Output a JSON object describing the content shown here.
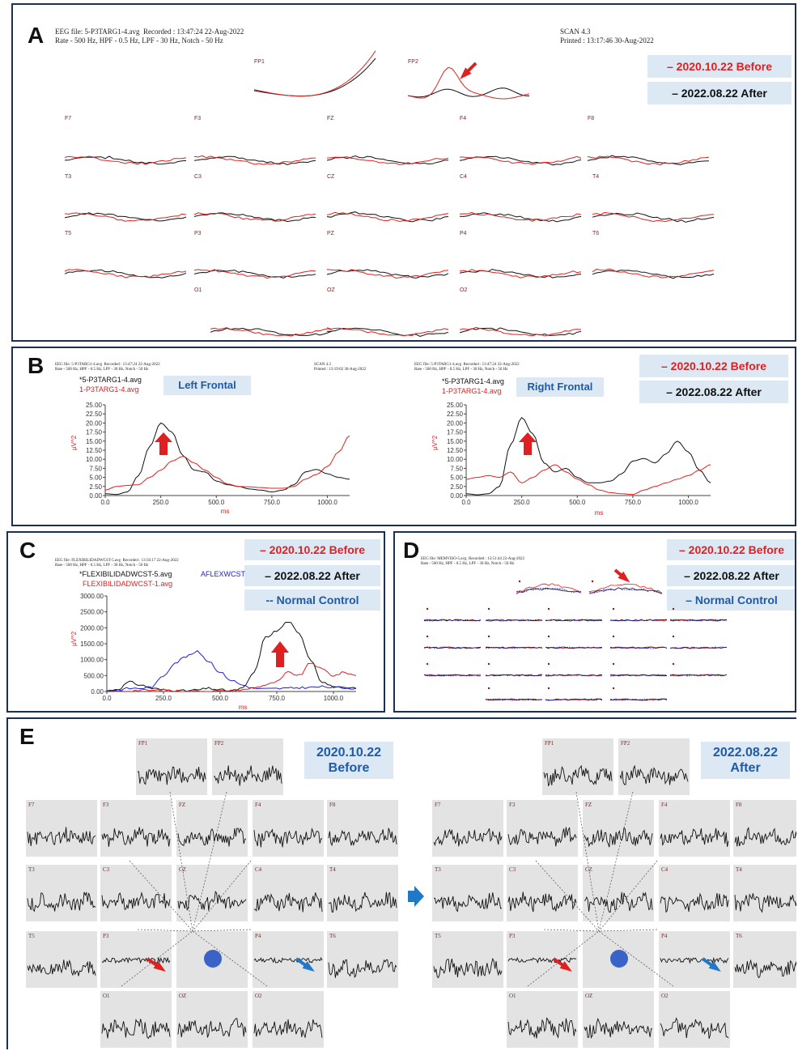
{
  "panelA": {
    "letter": "A",
    "header_line1": "EEG file: 5-P3TARG1-4.avg  Recorded : 13:47:24 22-Aug-2022",
    "header_line2": "Rate - 500 Hz, HPF - 0.5 Hz, LPF - 30 Hz, Notch - 50 Hz",
    "scan": "SCAN 4.3",
    "printed": "Printed : 13:17:46 30-Aug-2022",
    "legend_before": "–  2020.10.22  Before",
    "legend_after": "–  2022.08.22  After",
    "channels": [
      "FP1",
      "FP2",
      "F7",
      "F3",
      "FZ",
      "F4",
      "F8",
      "T3",
      "C3",
      "CZ",
      "C4",
      "T4",
      "T5",
      "P3",
      "PZ",
      "P4",
      "T6",
      "O1",
      "OZ",
      "O2"
    ]
  },
  "panelB": {
    "letter": "B",
    "header_line1": "EEG file: 5-P3TARG1-4.avg  Recorded : 13:47:24 22-Aug-2022",
    "header_line2": "Rate - 500 Hz, HPF - 0.5 Hz, LPF - 30 Hz, Notch - 50 Hz",
    "scan": "SCAN 4.3",
    "printed_left": "Printed : 13:19:02 30-Aug-2022",
    "printed_right": "Printed : 13:19:49 30-Aug-2022",
    "series1": "*5-P3TARG1-4.avg",
    "series2": "1-P3TARG1-4.avg",
    "tag_left": "Left Frontal",
    "tag_right": "Right Frontal",
    "legend_before": "–  2020.10.22  Before",
    "legend_after": "–  2022.08.22  After",
    "ylabel": "µV^2",
    "xlabel": "ms"
  },
  "panelC": {
    "letter": "C",
    "header_line1": "EEG file: FLEXIBILIDADWCST-5.avg  Recorded : 13:56:17 22-Aug-2022",
    "header_line2": "Rate - 500 Hz, HPF - 0.5 Hz, LPF - 30 Hz, Notch - 50 Hz",
    "series1": "*FLEXIBILIDADWCST-5.avg",
    "series2": "FLEXIBILIDADWCST-1.avg",
    "series3": "AFLEXWCST",
    "legend_before": "–  2020.10.22  Before",
    "legend_after": "–  2022.08.22  After",
    "legend_normal": "--  Normal Control",
    "ylabel": "µV^2",
    "xlabel": "ms"
  },
  "panelD": {
    "letter": "D",
    "header_line1": "EEG file: MEMVISO-5.avg  Recorded : 13:51:44 22-Aug-2022",
    "header_line2": "Rate - 500 Hz, HPF - 0.5 Hz, LPF - 30 Hz, Notch - 50 Hz",
    "legend_before": "–  2020.10.22  Before",
    "legend_after": "–  2022.08.22  After",
    "legend_normal": "–  Normal Control"
  },
  "panelE": {
    "letter": "E",
    "left_tag_line1": "2020.10.22",
    "left_tag_line2": "Before",
    "right_tag_line1": "2022.08.22",
    "right_tag_line2": "After",
    "channels": [
      "FP1",
      "FP2",
      "F7",
      "F3",
      "FZ",
      "F4",
      "F8",
      "T3",
      "C3",
      "CZ",
      "C4",
      "T4",
      "T5",
      "P3",
      "PZ",
      "P4",
      "T6",
      "O1",
      "OZ",
      "O2"
    ]
  },
  "colors": {
    "before": "#e02020",
    "after": "#111111",
    "normal": "#2020d0",
    "frame": "#1f2f4f",
    "tag_bg": "#dce9f5",
    "arrow_blue": "#1f78c8"
  },
  "chart_data": [
    {
      "type": "line",
      "panel": "B-left",
      "x": [
        0,
        50,
        100,
        150,
        200,
        250,
        300,
        350,
        400,
        450,
        500,
        550,
        600,
        650,
        700,
        750,
        800,
        850,
        900,
        950,
        1000,
        1050,
        1100
      ],
      "series": [
        {
          "name": "*5-P3TARG1-4.avg",
          "values": [
            0.5,
            0.3,
            1.0,
            5.5,
            13.5,
            20.0,
            17.5,
            11.0,
            7.0,
            6.5,
            4.0,
            3.0,
            2.5,
            1.8,
            1.5,
            1.0,
            1.5,
            3.0,
            6.5,
            7.2,
            6.0,
            5.0,
            4.5
          ]
        },
        {
          "name": "1-P3TARG1-4.avg",
          "values": [
            1.5,
            2.5,
            2.8,
            3.0,
            5.0,
            7.0,
            9.5,
            10.8,
            9.0,
            7.0,
            5.0,
            3.2,
            2.5,
            2.4,
            2.2,
            2.0,
            2.0,
            2.5,
            4.5,
            5.8,
            8.0,
            12.0,
            16.5
          ]
        }
      ],
      "xlim": [
        0,
        1100
      ],
      "ylim": [
        0,
        25
      ],
      "xticks": [
        "0.0",
        "250.0",
        "500.0",
        "750.0",
        "1000.0"
      ],
      "yticks": [
        "0.00",
        "2.50",
        "5.00",
        "7.50",
        "10.00",
        "12.50",
        "15.00",
        "17.50",
        "20.00",
        "22.50",
        "25.00"
      ]
    },
    {
      "type": "line",
      "panel": "B-right",
      "x": [
        0,
        50,
        100,
        150,
        200,
        250,
        300,
        350,
        400,
        450,
        500,
        550,
        600,
        650,
        700,
        750,
        800,
        850,
        900,
        950,
        1000,
        1050,
        1100
      ],
      "series": [
        {
          "name": "*5-P3TARG1-4.avg",
          "values": [
            0.5,
            0.2,
            0.5,
            2.5,
            14.0,
            21.5,
            17.0,
            9.0,
            6.5,
            7.5,
            5.0,
            3.5,
            3.5,
            4.0,
            6.0,
            9.5,
            10.2,
            9.0,
            11.5,
            15.0,
            12.0,
            7.0,
            3.5
          ]
        },
        {
          "name": "1-P3TARG1-4.avg",
          "values": [
            4.5,
            5.0,
            5.5,
            5.0,
            6.5,
            3.5,
            5.0,
            7.0,
            8.5,
            6.5,
            4.5,
            3.0,
            1.5,
            0.8,
            0.5,
            0.3,
            1.5,
            2.5,
            3.5,
            4.5,
            5.5,
            7.0,
            8.5
          ]
        }
      ],
      "xlim": [
        0,
        1100
      ],
      "ylim": [
        0,
        25
      ],
      "xticks": [
        "0.0",
        "250.0",
        "500.0",
        "750.0",
        "1000.0"
      ],
      "yticks": [
        "0.00",
        "2.50",
        "5.00",
        "7.50",
        "10.00",
        "12.50",
        "15.00",
        "17.50",
        "20.00",
        "22.50",
        "25.00"
      ]
    },
    {
      "type": "line",
      "panel": "C",
      "x": [
        0,
        50,
        100,
        150,
        200,
        250,
        300,
        350,
        400,
        450,
        500,
        550,
        600,
        650,
        700,
        750,
        800,
        850,
        900,
        950,
        1000,
        1050,
        1100
      ],
      "series": [
        {
          "name": "*FLEXIBILIDADWCST-5.avg",
          "values": [
            20,
            80,
            300,
            200,
            100,
            50,
            30,
            20,
            50,
            100,
            50,
            20,
            100,
            600,
            1700,
            1900,
            2200,
            1800,
            1000,
            300,
            150,
            100,
            100
          ]
        },
        {
          "name": "FLEXIBILIDADWCST-1.avg",
          "values": [
            0,
            10,
            20,
            40,
            30,
            50,
            20,
            10,
            10,
            20,
            10,
            20,
            50,
            120,
            200,
            300,
            600,
            500,
            900,
            700,
            500,
            600,
            500
          ]
        },
        {
          "name": "AFLEXWCST",
          "values": [
            0,
            50,
            100,
            100,
            150,
            500,
            900,
            1100,
            1250,
            950,
            600,
            350,
            200,
            100,
            80,
            90,
            100,
            120,
            130,
            150,
            130,
            110,
            100
          ]
        }
      ],
      "xlim": [
        0,
        1100
      ],
      "ylim": [
        0,
        3000
      ],
      "xticks": [
        "0.0",
        "250.0",
        "500.0",
        "750.0",
        "1000.0"
      ],
      "yticks": [
        "0.00",
        "500.00",
        "1000.00",
        "1500.00",
        "2000.00",
        "2500.00",
        "3000.00"
      ]
    }
  ]
}
